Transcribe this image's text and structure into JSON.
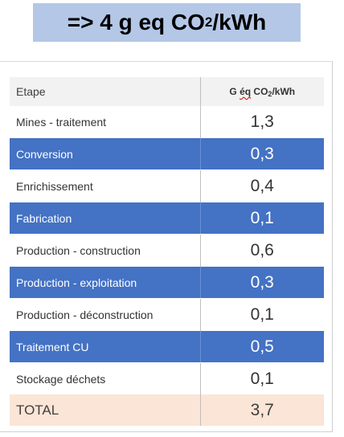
{
  "headline": {
    "prefix": "=> 4 g eq CO",
    "subscript": "2",
    "suffix": "/kWh"
  },
  "table": {
    "header": {
      "step": "Etape",
      "value_prefix": "G ",
      "value_squiggle": "éq",
      "value_mid": " CO",
      "value_sub": "2",
      "value_suffix": "/kWh"
    },
    "rows": [
      {
        "step": "Mines - traitement",
        "value": "1,3",
        "style": "light"
      },
      {
        "step": "Conversion",
        "value": "0,3",
        "style": "dark"
      },
      {
        "step": "Enrichissement",
        "value": "0,4",
        "style": "light"
      },
      {
        "step": "Fabrication",
        "value": "0,1",
        "style": "dark"
      },
      {
        "step": "Production - construction",
        "value": "0,6",
        "style": "light"
      },
      {
        "step": "Production - exploitation",
        "value": "0,3",
        "style": "dark"
      },
      {
        "step": "Production - déconstruction",
        "value": "0,1",
        "style": "light"
      },
      {
        "step": "Traitement CU",
        "value": "0,5",
        "style": "dark"
      },
      {
        "step": "Stockage déchets",
        "value": "0,1",
        "style": "light"
      }
    ],
    "total": {
      "step": "TOTAL",
      "value": "3,7"
    }
  },
  "colors": {
    "headline_bg": "#b4c7e7",
    "dark_row": "#4472c4",
    "total_row": "#fbe5d6",
    "header_row": "#f2f2f2",
    "spell_check_underline": "#d00000"
  }
}
